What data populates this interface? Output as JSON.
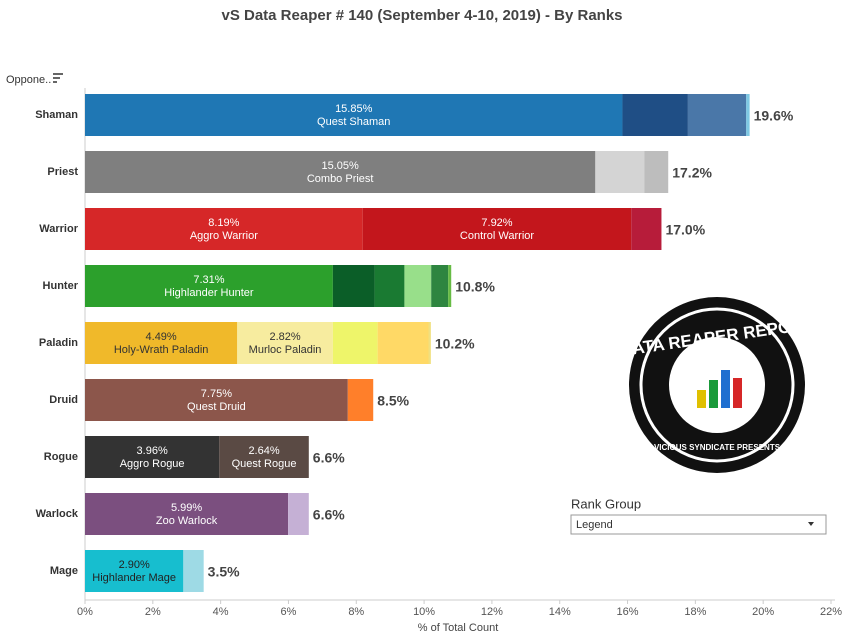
{
  "chart_data": {
    "type": "stacked-bar",
    "title": "vS Data Reaper #  140 (September 4-10, 2019) - By Ranks",
    "y_header": "Oppone..",
    "x_label": "% of Total Count",
    "xlim": [
      0,
      22
    ],
    "xticks": [
      {
        "value": 0,
        "label": "0%"
      },
      {
        "value": 2,
        "label": "2%"
      },
      {
        "value": 4,
        "label": "4%"
      },
      {
        "value": 6,
        "label": "6%"
      },
      {
        "value": 8,
        "label": "8%"
      },
      {
        "value": 10,
        "label": "10%"
      },
      {
        "value": 12,
        "label": "12%"
      },
      {
        "value": 14,
        "label": "14%"
      },
      {
        "value": 16,
        "label": "16%"
      },
      {
        "value": 18,
        "label": "18%"
      },
      {
        "value": 20,
        "label": "20%"
      },
      {
        "value": 22,
        "label": "22%"
      }
    ],
    "bars": [
      {
        "name": "Shaman",
        "total": 19.6,
        "total_label": "19.6%",
        "segments": [
          {
            "value": 15.85,
            "value_label": "15.85%",
            "name": "Quest Shaman",
            "color": "#1f77b4",
            "text_color": "#ffffff"
          },
          {
            "value": 1.93,
            "color": "#1f4e85"
          },
          {
            "value": 1.72,
            "color": "#4a77a8"
          },
          {
            "value": 0.1,
            "color": "#7ec8e3"
          }
        ]
      },
      {
        "name": "Priest",
        "total": 17.2,
        "total_label": "17.2%",
        "segments": [
          {
            "value": 15.05,
            "value_label": "15.05%",
            "name": "Combo Priest",
            "color": "#7f7f7f",
            "text_color": "#ffffff"
          },
          {
            "value": 1.45,
            "color": "#d4d4d4"
          },
          {
            "value": 0.7,
            "color": "#bdbdbd"
          }
        ]
      },
      {
        "name": "Warrior",
        "total": 17.0,
        "total_label": "17.0%",
        "segments": [
          {
            "value": 8.19,
            "value_label": "8.19%",
            "name": "Aggro Warrior",
            "color": "#d62728",
            "text_color": "#ffffff"
          },
          {
            "value": 7.92,
            "value_label": "7.92%",
            "name": "Control Warrior",
            "color": "#c3161c",
            "text_color": "#ffffff"
          },
          {
            "value": 0.89,
            "color": "#b71c3a"
          }
        ]
      },
      {
        "name": "Hunter",
        "total": 10.8,
        "total_label": "10.8%",
        "segments": [
          {
            "value": 7.31,
            "value_label": "7.31%",
            "name": "Highlander Hunter",
            "color": "#2ca02c",
            "text_color": "#ffffff"
          },
          {
            "value": 1.23,
            "color": "#0b5e28"
          },
          {
            "value": 0.88,
            "color": "#1a7a32"
          },
          {
            "value": 0.79,
            "color": "#98df8a"
          },
          {
            "value": 0.5,
            "color": "#2e8540"
          },
          {
            "value": 0.09,
            "color": "#66bb44"
          }
        ]
      },
      {
        "name": "Paladin",
        "total": 10.2,
        "total_label": "10.2%",
        "segments": [
          {
            "value": 4.49,
            "value_label": "4.49%",
            "name": "Holy-Wrath Paladin",
            "color": "#f0b92a",
            "text_color": "#333333"
          },
          {
            "value": 2.82,
            "value_label": "2.82%",
            "name": "Murloc Paladin",
            "color": "#f7ec9f",
            "text_color": "#333333"
          },
          {
            "value": 1.32,
            "color": "#eef56a"
          },
          {
            "value": 1.5,
            "color": "#ffd966"
          },
          {
            "value": 0.07,
            "color": "#f0e080"
          }
        ]
      },
      {
        "name": "Druid",
        "total": 8.5,
        "total_label": "8.5%",
        "segments": [
          {
            "value": 7.75,
            "value_label": "7.75%",
            "name": "Quest Druid",
            "color": "#8c564b",
            "text_color": "#ffffff"
          },
          {
            "value": 0.75,
            "color": "#ff7f2a"
          }
        ]
      },
      {
        "name": "Rogue",
        "total": 6.6,
        "total_label": "6.6%",
        "segments": [
          {
            "value": 3.96,
            "value_label": "3.96%",
            "name": "Aggro Rogue",
            "color": "#333333",
            "text_color": "#ffffff"
          },
          {
            "value": 2.64,
            "value_label": "2.64%",
            "name": "Quest Rogue",
            "color": "#5a4a44",
            "text_color": "#ffffff"
          }
        ]
      },
      {
        "name": "Warlock",
        "total": 6.6,
        "total_label": "6.6%",
        "segments": [
          {
            "value": 5.99,
            "value_label": "5.99%",
            "name": "Zoo Warlock",
            "color": "#7b4f7f",
            "text_color": "#ffffff"
          },
          {
            "value": 0.61,
            "color": "#c5b0d5"
          }
        ]
      },
      {
        "name": "Mage",
        "total": 3.5,
        "total_label": "3.5%",
        "segments": [
          {
            "value": 2.9,
            "value_label": "2.90%",
            "name": "Highlander Mage",
            "color": "#17becf",
            "text_color": "#222222"
          },
          {
            "value": 0.6,
            "color": "#9edae5"
          }
        ]
      }
    ],
    "legend": {
      "title": "Rank Group",
      "dropdown": "Legend"
    },
    "logo": {
      "top": "DATA REAPER REPORT",
      "bottom": "VICIOUS SYNDICATE PRESENTS"
    }
  }
}
